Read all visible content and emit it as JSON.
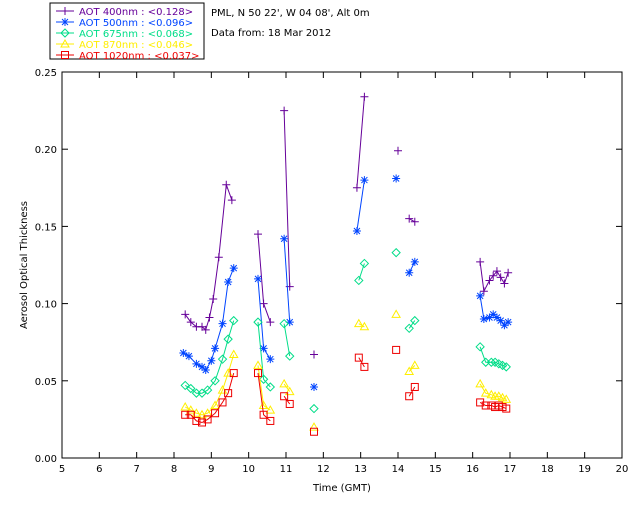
{
  "header": {
    "site": "PML, N 50 22', W 04 08', Alt 0m",
    "date": "Data from: 18 Mar 2012"
  },
  "chart_data": {
    "type": "line",
    "xlabel": "Time (GMT)",
    "ylabel": "Aerosol Optical Thickness",
    "xlim": [
      5,
      20
    ],
    "ylim": [
      0.0,
      0.25
    ],
    "xticks": [
      5,
      6,
      7,
      8,
      9,
      10,
      11,
      12,
      13,
      14,
      15,
      16,
      17,
      18,
      19,
      20
    ],
    "yticks": [
      "0.00",
      "0.05",
      "0.10",
      "0.15",
      "0.20",
      "0.25"
    ],
    "grid": false,
    "legend_position": "top-left outside",
    "series": [
      {
        "name": "AOT  400nm : <0.128>",
        "color": "#660099",
        "marker": "plus",
        "segments": [
          [
            [
              8.3,
              0.093
            ],
            [
              8.45,
              0.088
            ],
            [
              8.6,
              0.085
            ],
            [
              8.75,
              0.085
            ],
            [
              8.85,
              0.083
            ],
            [
              8.95,
              0.091
            ],
            [
              9.05,
              0.103
            ],
            [
              9.2,
              0.13
            ],
            [
              9.4,
              0.177
            ],
            [
              9.55,
              0.167
            ]
          ],
          [
            [
              10.25,
              0.145
            ],
            [
              10.4,
              0.1
            ],
            [
              10.58,
              0.088
            ]
          ],
          [
            [
              10.95,
              0.225
            ],
            [
              11.1,
              0.111
            ]
          ],
          [
            [
              11.75,
              0.067
            ]
          ],
          [
            [
              12.9,
              0.175
            ],
            [
              13.1,
              0.234
            ]
          ],
          [
            [
              14.0,
              0.199
            ]
          ],
          [
            [
              14.3,
              0.155
            ],
            [
              14.45,
              0.153
            ]
          ],
          [
            [
              16.2,
              0.127
            ],
            [
              16.3,
              0.108
            ],
            [
              16.45,
              0.115
            ],
            [
              16.55,
              0.118
            ],
            [
              16.65,
              0.121
            ],
            [
              16.75,
              0.117
            ],
            [
              16.85,
              0.113
            ],
            [
              16.95,
              0.12
            ]
          ]
        ]
      },
      {
        "name": "AOT  500nm : <0.096>",
        "color": "#0044ff",
        "marker": "asterisk",
        "segments": [
          [
            [
              8.25,
              0.068
            ],
            [
              8.4,
              0.066
            ],
            [
              8.6,
              0.061
            ],
            [
              8.75,
              0.059
            ],
            [
              8.85,
              0.057
            ],
            [
              9.0,
              0.063
            ],
            [
              9.1,
              0.071
            ],
            [
              9.3,
              0.087
            ],
            [
              9.45,
              0.114
            ],
            [
              9.6,
              0.123
            ]
          ],
          [
            [
              10.25,
              0.116
            ],
            [
              10.4,
              0.071
            ],
            [
              10.58,
              0.064
            ]
          ],
          [
            [
              10.95,
              0.142
            ],
            [
              11.1,
              0.088
            ]
          ],
          [
            [
              11.75,
              0.046
            ]
          ],
          [
            [
              12.9,
              0.147
            ],
            [
              13.1,
              0.18
            ]
          ],
          [
            [
              13.95,
              0.181
            ]
          ],
          [
            [
              14.3,
              0.12
            ],
            [
              14.45,
              0.127
            ]
          ],
          [
            [
              16.2,
              0.105
            ],
            [
              16.3,
              0.09
            ],
            [
              16.45,
              0.091
            ],
            [
              16.55,
              0.093
            ],
            [
              16.65,
              0.091
            ],
            [
              16.75,
              0.089
            ],
            [
              16.85,
              0.086
            ],
            [
              16.95,
              0.088
            ]
          ]
        ]
      },
      {
        "name": "AOT  675nm : <0.068>",
        "color": "#00dd88",
        "marker": "diamond",
        "segments": [
          [
            [
              8.3,
              0.047
            ],
            [
              8.45,
              0.045
            ],
            [
              8.6,
              0.042
            ],
            [
              8.75,
              0.042
            ],
            [
              8.9,
              0.044
            ],
            [
              9.1,
              0.05
            ],
            [
              9.3,
              0.064
            ],
            [
              9.45,
              0.077
            ],
            [
              9.6,
              0.089
            ]
          ],
          [
            [
              10.25,
              0.088
            ],
            [
              10.4,
              0.051
            ],
            [
              10.58,
              0.046
            ]
          ],
          [
            [
              10.95,
              0.087
            ],
            [
              11.1,
              0.066
            ]
          ],
          [
            [
              11.75,
              0.032
            ]
          ],
          [
            [
              12.95,
              0.115
            ],
            [
              13.1,
              0.126
            ]
          ],
          [
            [
              13.95,
              0.133
            ]
          ],
          [
            [
              14.3,
              0.084
            ],
            [
              14.45,
              0.089
            ]
          ],
          [
            [
              16.2,
              0.072
            ],
            [
              16.35,
              0.062
            ],
            [
              16.5,
              0.062
            ],
            [
              16.6,
              0.062
            ],
            [
              16.7,
              0.061
            ],
            [
              16.8,
              0.06
            ],
            [
              16.9,
              0.059
            ]
          ]
        ]
      },
      {
        "name": "AOT  870nm : <0.046>",
        "color": "#ffee00",
        "marker": "triangle",
        "segments": [
          [
            [
              8.3,
              0.033
            ],
            [
              8.45,
              0.031
            ],
            [
              8.6,
              0.029
            ],
            [
              8.75,
              0.028
            ],
            [
              8.9,
              0.029
            ],
            [
              9.1,
              0.034
            ],
            [
              9.3,
              0.044
            ],
            [
              9.45,
              0.055
            ],
            [
              9.6,
              0.067
            ]
          ],
          [
            [
              10.25,
              0.06
            ],
            [
              10.4,
              0.034
            ],
            [
              10.58,
              0.031
            ]
          ],
          [
            [
              10.95,
              0.048
            ],
            [
              11.1,
              0.043
            ]
          ],
          [
            [
              11.75,
              0.02
            ]
          ],
          [
            [
              12.95,
              0.087
            ],
            [
              13.1,
              0.085
            ]
          ],
          [
            [
              13.95,
              0.093
            ]
          ],
          [
            [
              14.3,
              0.056
            ],
            [
              14.45,
              0.06
            ]
          ],
          [
            [
              16.2,
              0.048
            ],
            [
              16.35,
              0.042
            ],
            [
              16.5,
              0.041
            ],
            [
              16.6,
              0.04
            ],
            [
              16.7,
              0.04
            ],
            [
              16.8,
              0.039
            ],
            [
              16.9,
              0.038
            ]
          ]
        ]
      },
      {
        "name": "AOT 1020nm : <0.037>",
        "color": "#ee0000",
        "marker": "square",
        "segments": [
          [
            [
              8.3,
              0.028
            ],
            [
              8.45,
              0.028
            ],
            [
              8.6,
              0.024
            ],
            [
              8.75,
              0.023
            ],
            [
              8.9,
              0.025
            ],
            [
              9.1,
              0.029
            ],
            [
              9.3,
              0.036
            ],
            [
              9.45,
              0.042
            ],
            [
              9.6,
              0.055
            ]
          ],
          [
            [
              10.25,
              0.055
            ],
            [
              10.4,
              0.028
            ],
            [
              10.58,
              0.024
            ]
          ],
          [
            [
              10.95,
              0.04
            ],
            [
              11.1,
              0.035
            ]
          ],
          [
            [
              11.75,
              0.017
            ]
          ],
          [
            [
              12.95,
              0.065
            ],
            [
              13.1,
              0.059
            ]
          ],
          [
            [
              13.95,
              0.07
            ]
          ],
          [
            [
              14.3,
              0.04
            ],
            [
              14.45,
              0.046
            ]
          ],
          [
            [
              16.2,
              0.036
            ],
            [
              16.35,
              0.034
            ],
            [
              16.5,
              0.034
            ],
            [
              16.6,
              0.033
            ],
            [
              16.7,
              0.034
            ],
            [
              16.8,
              0.033
            ],
            [
              16.9,
              0.032
            ]
          ]
        ]
      }
    ]
  }
}
